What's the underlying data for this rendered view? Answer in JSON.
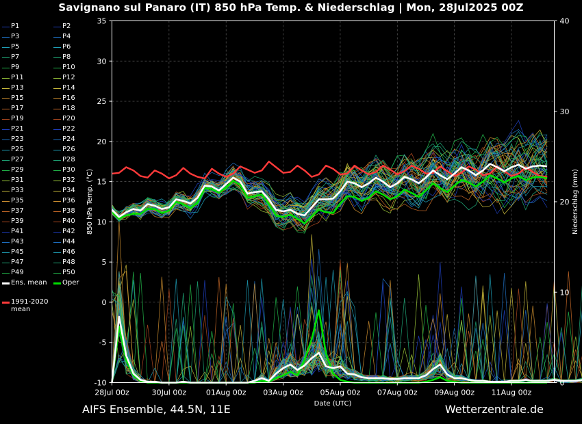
{
  "header": {
    "title": "Savignano sul Panaro  (IT)  850 hPa Temp. & Niederschlag | Mon, 28Jul2025 00Z"
  },
  "footer": {
    "model": "AIFS Ensemble, 44.5N, 11E",
    "source": "Wetterzentrale.de"
  },
  "legend": {
    "members": [
      "P1",
      "P2",
      "P3",
      "P4",
      "P5",
      "P6",
      "P7",
      "P8",
      "P9",
      "P10",
      "P11",
      "P12",
      "P13",
      "P14",
      "P15",
      "P16",
      "P17",
      "P18",
      "P19",
      "P20",
      "P21",
      "P22",
      "P23",
      "P24",
      "P25",
      "P26",
      "P27",
      "P28",
      "P29",
      "P30",
      "P31",
      "P32",
      "P33",
      "P34",
      "P35",
      "P36",
      "P37",
      "P38",
      "P39",
      "P40",
      "P41",
      "P42",
      "P43",
      "P44",
      "P45",
      "P46",
      "P47",
      "P48",
      "P49",
      "P50"
    ],
    "member_colors": [
      "#1f3fbf",
      "#1f3fbf",
      "#1e6fc0",
      "#1e6fc0",
      "#1fa0b8",
      "#1fa0b8",
      "#1fa878",
      "#1fa878",
      "#22b84a",
      "#22b84a",
      "#9cc83a",
      "#9cc83a",
      "#c8b83a",
      "#c8b83a",
      "#d09030",
      "#d09030",
      "#c86a28",
      "#c86a28",
      "#b04a20",
      "#b04a20",
      "#1f3fbf",
      "#1f3fbf",
      "#1e6fc0",
      "#1e6fc0",
      "#1fa0b8",
      "#1fa0b8",
      "#1fa878",
      "#1fa878",
      "#22b84a",
      "#22b84a",
      "#9cc83a",
      "#9cc83a",
      "#c8b83a",
      "#c8b83a",
      "#d09030",
      "#d09030",
      "#c86a28",
      "#c86a28",
      "#b04a20",
      "#b04a20",
      "#1f3fbf",
      "#1f3fbf",
      "#1e6fc0",
      "#1e6fc0",
      "#1fa0b8",
      "#1fa0b8",
      "#1fa878",
      "#1fa878",
      "#22b84a",
      "#22b84a"
    ],
    "ens_mean": "Ens. mean",
    "oper": "Oper",
    "climate_line1": "1991-2020",
    "climate_line2": "mean",
    "ens_mean_color": "#ffffff",
    "oper_color": "#00e000",
    "climate_color": "#ff3a3a"
  },
  "chart_data": {
    "type": "line",
    "title": "Savignano sul Panaro  (IT)  850 hPa Temp. & Niederschlag | Mon, 28Jul2025 00Z",
    "xlabel": "Date (UTC)",
    "ylabel": "850 hPa Temp. (°C)",
    "y2label": "Niederschlag (mm)",
    "ylim": [
      -10,
      35
    ],
    "y2lim": [
      0,
      40
    ],
    "yticks": [
      -10,
      -5,
      0,
      5,
      10,
      15,
      20,
      25,
      30,
      35
    ],
    "y2ticks": [
      0,
      10,
      20,
      30,
      40
    ],
    "x_tick_labels": [
      "28Jul 00z",
      "30Jul 00z",
      "01Aug 00z",
      "03Aug 00z",
      "05Aug 00z",
      "07Aug 00z",
      "09Aug 00z",
      "11Aug 00z"
    ],
    "x_tick_hours": [
      0,
      48,
      96,
      144,
      192,
      240,
      288,
      336
    ],
    "x_range_hours": [
      0,
      372
    ],
    "step_hours": 6,
    "grid": true,
    "series": [
      {
        "name": "Ens. mean",
        "axis": "temp",
        "color": "#ffffff",
        "values": [
          11.5,
          10.6,
          11.2,
          11.6,
          11.4,
          12.2,
          12.0,
          11.6,
          11.8,
          12.8,
          12.6,
          12.3,
          13.0,
          14.5,
          14.4,
          13.9,
          14.7,
          15.5,
          15.0,
          13.5,
          13.7,
          13.8,
          12.8,
          11.5,
          11.3,
          11.5,
          11.0,
          10.8,
          11.8,
          12.8,
          12.8,
          12.9,
          13.8,
          15.0,
          14.8,
          14.3,
          14.8,
          15.5,
          15.0,
          14.3,
          14.8,
          15.6,
          15.3,
          14.8,
          15.5,
          16.4,
          15.8,
          15.3,
          16.0,
          16.8,
          16.4,
          15.8,
          16.4,
          17.2,
          16.8,
          16.3,
          16.8,
          17.1,
          16.6,
          16.9,
          17.0,
          16.9
        ]
      },
      {
        "name": "Oper",
        "axis": "temp",
        "color": "#00e000",
        "values": [
          11.2,
          10.4,
          10.8,
          11.0,
          11.0,
          11.6,
          11.6,
          11.1,
          11.4,
          12.5,
          12.2,
          11.7,
          12.4,
          14.2,
          14.1,
          13.6,
          14.3,
          15.1,
          14.6,
          13.0,
          13.2,
          13.4,
          12.2,
          10.8,
          10.6,
          10.9,
          10.4,
          9.8,
          10.7,
          11.5,
          11.2,
          11.1,
          12.3,
          13.2,
          13.1,
          12.6,
          13.0,
          13.8,
          13.4,
          12.8,
          13.2,
          14.0,
          13.6,
          13.1,
          13.9,
          14.8,
          14.2,
          13.7,
          14.5,
          15.2,
          14.9,
          14.4,
          15.0,
          15.8,
          15.4,
          14.9,
          15.4,
          15.7,
          15.2,
          15.5,
          15.6,
          15.4
        ]
      },
      {
        "name": "1991-2020 mean",
        "axis": "temp",
        "color": "#ff3a3a",
        "values": [
          16.0,
          16.1,
          16.8,
          16.4,
          15.7,
          15.5,
          16.4,
          16.0,
          15.4,
          15.8,
          16.7,
          16.0,
          15.6,
          15.4,
          16.6,
          16.0,
          15.6,
          16.0,
          16.9,
          16.5,
          16.1,
          16.4,
          17.5,
          16.8,
          16.1,
          16.2,
          17.0,
          16.4,
          15.6,
          15.9,
          17.0,
          16.6,
          15.9,
          16.0,
          17.0,
          16.4,
          15.9,
          16.2,
          17.0,
          16.5,
          15.9,
          16.3,
          17.0,
          16.6,
          16.0,
          16.1,
          16.9,
          16.3,
          15.7,
          16.1,
          16.9,
          16.5,
          15.8,
          16.0,
          16.9,
          16.3,
          15.7,
          16.0,
          16.8,
          16.2,
          15.7,
          15.6
        ]
      },
      {
        "name": "Ens. mean",
        "axis": "precip",
        "color": "#ffffff",
        "values": [
          0,
          7.3,
          3.0,
          1.0,
          0.3,
          0.1,
          0.1,
          0,
          0,
          0,
          0.1,
          0,
          0,
          0,
          0,
          0,
          0,
          0,
          0,
          0,
          0.2,
          0.5,
          0.2,
          1.0,
          1.6,
          2.0,
          1.4,
          1.9,
          2.7,
          3.3,
          1.8,
          1.6,
          1.8,
          1.0,
          0.9,
          0.6,
          0.5,
          0.5,
          0.5,
          0.4,
          0.4,
          0.5,
          0.5,
          0.5,
          0.8,
          1.5,
          2.0,
          0.9,
          0.5,
          0.5,
          0.3,
          0.2,
          0.2,
          0.1,
          0.1,
          0.1,
          0.2,
          0.2,
          0.3,
          0.2,
          0.2,
          0.2,
          0.3,
          0.2,
          0.2,
          0.2,
          0.3,
          0.4,
          0.3,
          0.4,
          0.7,
          0.4
        ]
      },
      {
        "name": "Oper",
        "axis": "precip",
        "color": "#00e000",
        "values": [
          0,
          6.2,
          2.5,
          0.8,
          0.2,
          0,
          0,
          0,
          0,
          0,
          0,
          0,
          0,
          0,
          0,
          0,
          0,
          0,
          0,
          0,
          0,
          0.2,
          0.1,
          0.5,
          0.8,
          1.2,
          0.8,
          2.5,
          4.8,
          8.0,
          3.2,
          1.0,
          0.3,
          0.1,
          0,
          0,
          0,
          0,
          0,
          0,
          0,
          0,
          0,
          0,
          0.1,
          0.3,
          0.6,
          0.2,
          0.1,
          0,
          0,
          0,
          0,
          0,
          0,
          0,
          0,
          0,
          0,
          0,
          0,
          0
        ]
      }
    ]
  }
}
